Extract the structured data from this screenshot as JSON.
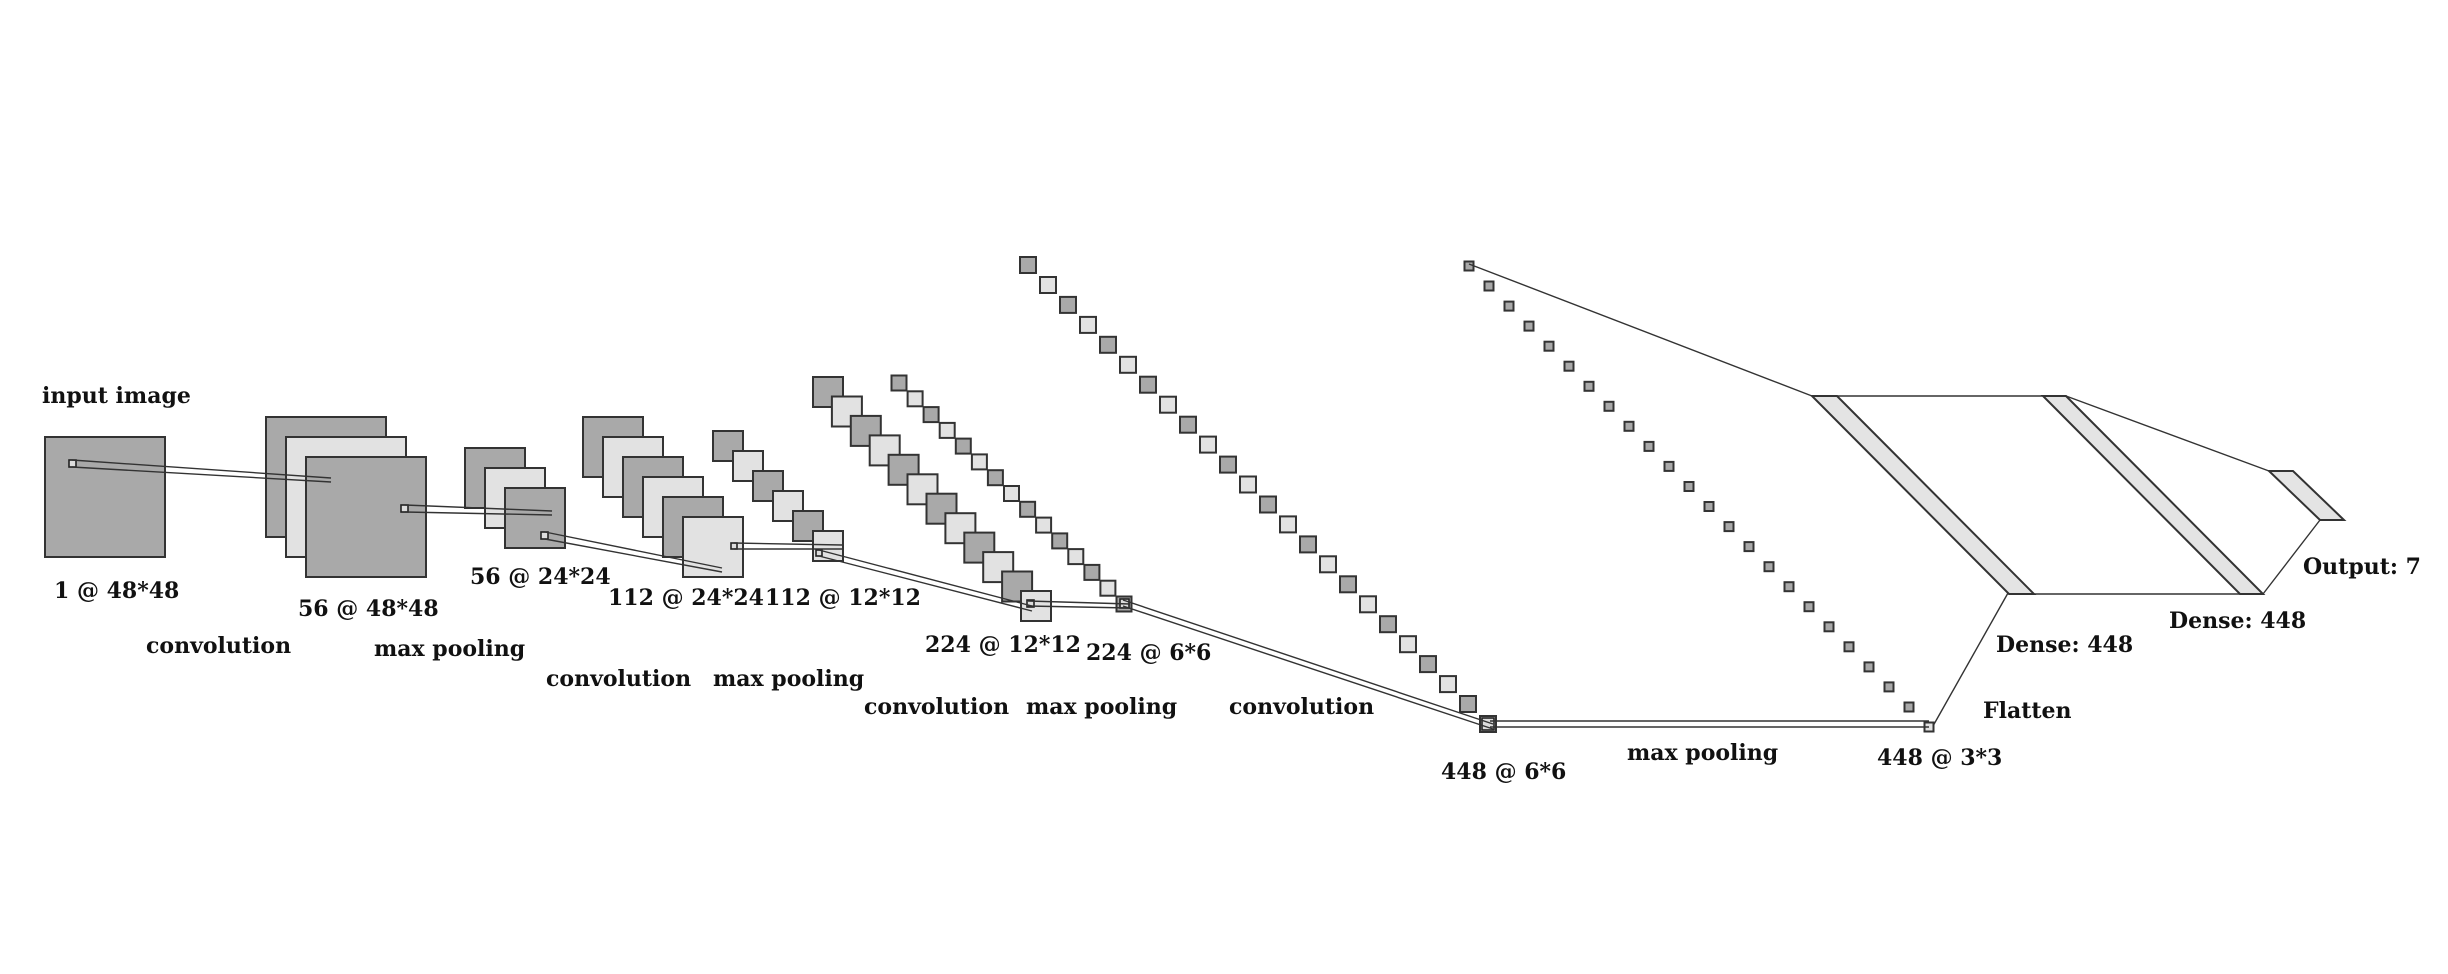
{
  "input": {
    "title": "input image",
    "shape": "1 @ 48*48"
  },
  "layers": [
    {
      "shape": "56 @ 48*48"
    },
    {
      "shape": "56 @ 24*24"
    },
    {
      "shape": "112 @ 24*24"
    },
    {
      "shape": "112 @ 12*12"
    },
    {
      "shape": "224 @ 12*12"
    },
    {
      "shape": "224 @ 6*6"
    },
    {
      "shape": "448 @ 6*6"
    },
    {
      "shape": "448 @ 3*3"
    }
  ],
  "operations": [
    "convolution",
    "max pooling",
    "convolution",
    "max pooling",
    "convolution",
    "max pooling",
    "convolution",
    "max pooling"
  ],
  "flatten": "Flatten",
  "dense": [
    "Dense: 448",
    "Dense: 448"
  ],
  "output": "Output: 7",
  "colors": {
    "dark_map": "#a9a9a9",
    "light_map": "#e2e2e2",
    "stroke": "#333333"
  }
}
